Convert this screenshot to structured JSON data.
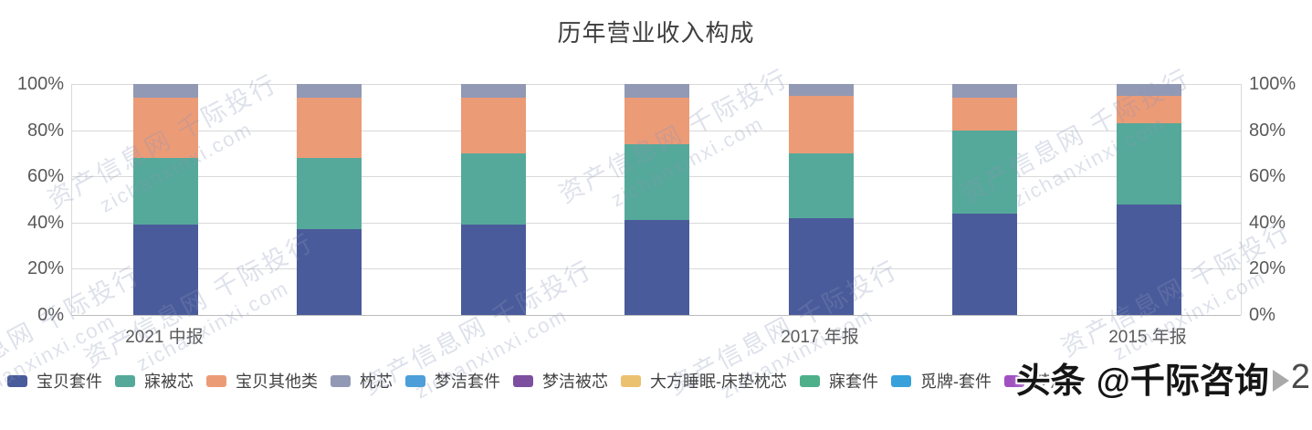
{
  "title": "历年营业收入构成",
  "chart_data": {
    "type": "bar",
    "stacked": true,
    "percent_stacked": true,
    "title": "历年营业收入构成",
    "num_bars": 7,
    "x_ticks": [
      {
        "label": "2021 中报",
        "bar_index": 0
      },
      {
        "label": "2017 年报",
        "bar_index": 4
      },
      {
        "label": "2015 年报",
        "bar_index": 6
      }
    ],
    "series": [
      {
        "name": "宝贝套件",
        "color": "#4A5B9B",
        "values": [
          39,
          37,
          39,
          41,
          42,
          44,
          48
        ]
      },
      {
        "name": "寐被芯",
        "color": "#55A99A",
        "values": [
          29,
          31,
          31,
          33,
          28,
          36,
          35
        ]
      },
      {
        "name": "宝贝其他类",
        "color": "#EC9B77",
        "values": [
          26,
          26,
          24,
          20,
          25,
          14,
          12
        ]
      },
      {
        "name": "枕芯",
        "color": "#9199B5",
        "values": [
          6,
          6,
          6,
          6,
          5,
          6,
          5
        ]
      }
    ],
    "y_axis": {
      "min": 0,
      "max": 100,
      "tick_values": [
        0,
        20,
        40,
        60,
        80,
        100
      ],
      "tick_labels": [
        "0%",
        "20%",
        "40%",
        "60%",
        "80%",
        "100%"
      ],
      "sides": "both"
    },
    "grid": true,
    "legend_position": "bottom"
  },
  "legend": {
    "items": [
      {
        "label": "宝贝套件",
        "color": "#4A5B9B"
      },
      {
        "label": "寐被芯",
        "color": "#55A99A"
      },
      {
        "label": "宝贝其他类",
        "color": "#EC9B77"
      },
      {
        "label": "枕芯",
        "color": "#9199B5"
      },
      {
        "label": "梦洁套件",
        "color": "#4C9FD8"
      },
      {
        "label": "梦洁被芯",
        "color": "#7C4F9F"
      },
      {
        "label": "大方睡眠-床垫枕芯",
        "color": "#EBC06E"
      },
      {
        "label": "寐套件",
        "color": "#4EB08A"
      },
      {
        "label": "觅牌-套件",
        "color": "#38A1DB"
      },
      {
        "label": "梦洁",
        "color": "#A051C0"
      }
    ]
  },
  "watermark": {
    "line1": "资产信息网 千际投行",
    "line2": "zichanxinxi.com"
  },
  "overlay": {
    "brand": "头条",
    "handle": "@千际咨询",
    "suffix": "2"
  }
}
